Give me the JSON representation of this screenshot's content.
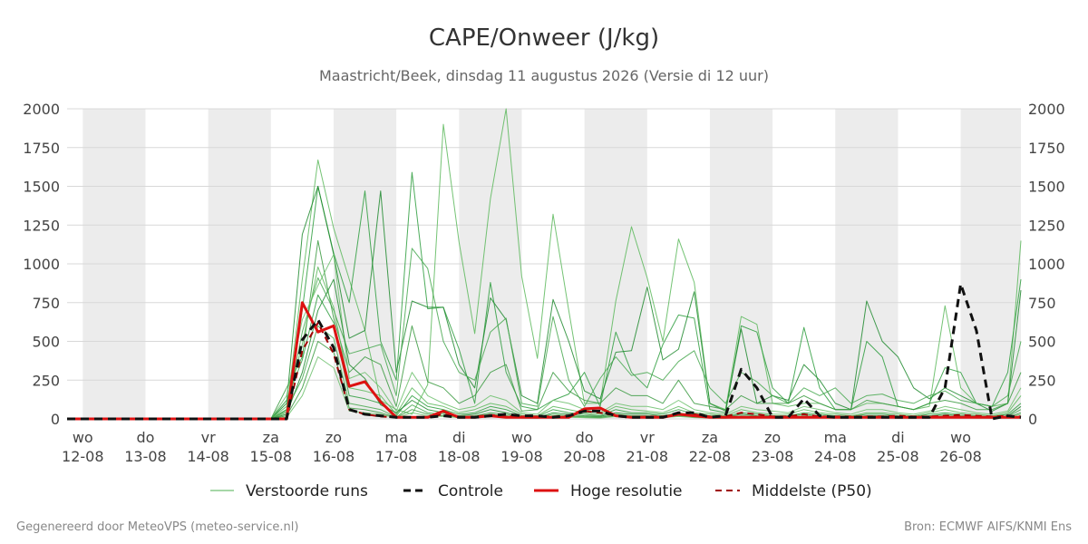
{
  "chart_data": {
    "type": "line",
    "title": "CAPE/Onweer (J/kg)",
    "subtitle": "Maastricht/Beek, dinsdag 11 augustus 2026 (Versie di 12 uur)",
    "ylim": [
      0,
      2000
    ],
    "yticks": [
      0,
      250,
      500,
      750,
      1000,
      1250,
      1500,
      1750,
      2000
    ],
    "xlim": [
      -0.25,
      14.96
    ],
    "x_ticks": [
      {
        "x": 0,
        "day": "wo",
        "date": "12-08"
      },
      {
        "x": 1,
        "day": "do",
        "date": "13-08"
      },
      {
        "x": 2,
        "day": "vr",
        "date": "14-08"
      },
      {
        "x": 3,
        "day": "za",
        "date": "15-08"
      },
      {
        "x": 4,
        "day": "zo",
        "date": "16-08"
      },
      {
        "x": 5,
        "day": "ma",
        "date": "17-08"
      },
      {
        "x": 6,
        "day": "di",
        "date": "18-08"
      },
      {
        "x": 7,
        "day": "wo",
        "date": "19-08"
      },
      {
        "x": 8,
        "day": "do",
        "date": "20-08"
      },
      {
        "x": 9,
        "day": "vr",
        "date": "21-08"
      },
      {
        "x": 10,
        "day": "za",
        "date": "22-08"
      },
      {
        "x": 11,
        "day": "zo",
        "date": "23-08"
      },
      {
        "x": 12,
        "day": "ma",
        "date": "24-08"
      },
      {
        "x": 13,
        "day": "di",
        "date": "25-08"
      },
      {
        "x": 14,
        "day": "wo",
        "date": "26-08"
      }
    ],
    "shaded_bands": [
      [
        0,
        1
      ],
      [
        2,
        3
      ],
      [
        4,
        5
      ],
      [
        6,
        7
      ],
      [
        8,
        9
      ],
      [
        10,
        11
      ],
      [
        12,
        13
      ],
      [
        14,
        14.96
      ]
    ],
    "legend": [
      "Verstoorde runs",
      "Controle",
      "Hoge resolutie",
      "Middelste (P50)"
    ],
    "series": [
      {
        "name": "Hoge resolutie",
        "color": "#dd1111",
        "x": [
          -0.25,
          0,
          0.5,
          1,
          1.5,
          2,
          2.5,
          3,
          3.25,
          3.5,
          3.75,
          4,
          4.25,
          4.5,
          4.75,
          5,
          5.25,
          5.5,
          5.75,
          6,
          6.25,
          6.5,
          6.75,
          7,
          7.25,
          7.5,
          7.75,
          8,
          8.25,
          8.5,
          8.75,
          9,
          9.25,
          9.5,
          9.75,
          10,
          10.25,
          10.5,
          10.75,
          11,
          11.25,
          11.5,
          11.75,
          12,
          12.25,
          12.5,
          12.75,
          13,
          13.25,
          13.5,
          13.75,
          14,
          14.25,
          14.5,
          14.75,
          14.96
        ],
        "y": [
          0,
          0,
          0,
          0,
          0,
          0,
          0,
          0,
          0,
          750,
          560,
          600,
          210,
          240,
          110,
          10,
          10,
          10,
          50,
          10,
          10,
          20,
          10,
          10,
          10,
          10,
          10,
          65,
          70,
          20,
          10,
          10,
          10,
          30,
          20,
          10,
          10,
          10,
          10,
          10,
          10,
          10,
          10,
          10,
          10,
          10,
          10,
          10,
          10,
          10,
          10,
          10,
          10,
          10,
          10,
          10
        ]
      },
      {
        "name": "Controle",
        "color": "#111111",
        "x": [
          -0.25,
          0,
          0.5,
          1,
          1.5,
          2,
          2.5,
          3,
          3.25,
          3.5,
          3.75,
          4,
          4.25,
          4.5,
          4.75,
          5,
          5.25,
          5.5,
          5.75,
          6,
          6.25,
          6.5,
          6.75,
          7,
          7.25,
          7.5,
          7.75,
          8,
          8.25,
          8.5,
          8.75,
          9,
          9.25,
          9.5,
          9.75,
          10,
          10.25,
          10.5,
          10.75,
          11,
          11.25,
          11.5,
          11.75,
          12,
          12.25,
          12.5,
          12.75,
          13,
          13.25,
          13.5,
          13.75,
          14,
          14.25,
          14.5,
          14.75,
          14.96
        ],
        "y": [
          0,
          0,
          0,
          0,
          0,
          0,
          0,
          0,
          0,
          510,
          640,
          460,
          60,
          30,
          20,
          10,
          10,
          10,
          20,
          10,
          10,
          20,
          30,
          20,
          20,
          10,
          20,
          50,
          50,
          20,
          10,
          10,
          10,
          40,
          40,
          10,
          20,
          320,
          200,
          10,
          10,
          130,
          20,
          10,
          10,
          10,
          10,
          10,
          10,
          10,
          200,
          870,
          570,
          0,
          20,
          10
        ]
      },
      {
        "name": "Middelste (P50)",
        "color": "#a00000",
        "x": [
          -0.25,
          0,
          0.5,
          1,
          1.5,
          2,
          2.5,
          3,
          3.25,
          3.5,
          3.75,
          4,
          4.25,
          4.5,
          4.75,
          5,
          5.25,
          5.5,
          5.75,
          6,
          6.25,
          6.5,
          6.75,
          7,
          7.25,
          7.5,
          7.75,
          8,
          8.25,
          8.5,
          8.75,
          9,
          9.25,
          9.5,
          9.75,
          10,
          10.25,
          10.5,
          10.75,
          11,
          11.25,
          11.5,
          11.75,
          12,
          12.25,
          12.5,
          12.75,
          13,
          13.25,
          13.5,
          13.75,
          14,
          14.25,
          14.5,
          14.75,
          14.96
        ],
        "y": [
          0,
          0,
          0,
          0,
          0,
          0,
          0,
          0,
          0,
          440,
          620,
          420,
          60,
          30,
          15,
          10,
          10,
          10,
          30,
          10,
          15,
          25,
          20,
          15,
          15,
          15,
          20,
          50,
          40,
          20,
          10,
          15,
          15,
          30,
          30,
          15,
          15,
          40,
          30,
          15,
          15,
          30,
          15,
          15,
          15,
          15,
          15,
          20,
          15,
          15,
          20,
          25,
          20,
          15,
          20,
          15
        ]
      },
      {
        "name": "Verstoorde runs",
        "color": "#22a030",
        "x": [
          -0.25,
          0,
          0.5,
          1,
          1.5,
          2,
          2.5,
          3,
          3.25,
          3.5,
          3.75,
          4,
          4.25,
          4.5,
          4.75,
          5,
          5.25,
          5.5,
          5.75,
          6,
          6.25,
          6.5,
          6.75,
          7,
          7.25,
          7.5,
          7.75,
          8,
          8.25,
          8.5,
          8.75,
          9,
          9.25,
          9.5,
          9.75,
          10,
          10.25,
          10.5,
          10.75,
          11,
          11.25,
          11.5,
          11.75,
          12,
          12.25,
          12.5,
          12.75,
          13,
          13.25,
          13.5,
          13.75,
          14,
          14.25,
          14.5,
          14.75,
          14.96
        ],
        "runs": [
          [
            0,
            0,
            0,
            0,
            0,
            0,
            0,
            0,
            40,
            900,
            1670,
            1230,
            900,
            570,
            120,
            60,
            30,
            220,
            1900,
            1140,
            550,
            1420,
            2000,
            920,
            390,
            1320,
            700,
            100,
            100,
            760,
            1240,
            910,
            500,
            1160,
            880,
            100,
            60,
            660,
            610,
            100,
            80,
            100,
            100,
            60,
            60,
            100,
            100,
            80,
            60,
            80,
            730,
            200,
            100,
            80,
            100,
            1150
          ],
          [
            0,
            0,
            0,
            0,
            0,
            0,
            0,
            0,
            60,
            700,
            1500,
            1070,
            750,
            1470,
            500,
            250,
            1590,
            710,
            720,
            450,
            100,
            880,
            300,
            80,
            60,
            120,
            160,
            300,
            80,
            560,
            300,
            200,
            480,
            670,
            650,
            60,
            40,
            600,
            560,
            200,
            100,
            590,
            200,
            60,
            60,
            500,
            400,
            80,
            60,
            100,
            330,
            300,
            100,
            80,
            300,
            900
          ],
          [
            0,
            0,
            0,
            0,
            0,
            0,
            0,
            0,
            100,
            1190,
            1500,
            1060,
            520,
            570,
            1470,
            300,
            760,
            720,
            720,
            350,
            200,
            780,
            640,
            150,
            100,
            770,
            500,
            180,
            130,
            430,
            440,
            850,
            380,
            450,
            820,
            100,
            50,
            580,
            100,
            150,
            120,
            350,
            250,
            100,
            60,
            760,
            500,
            400,
            200,
            130,
            200,
            150,
            100,
            50,
            100,
            830
          ],
          [
            0,
            0,
            0,
            0,
            0,
            0,
            0,
            0,
            50,
            560,
            910,
            700,
            420,
            450,
            480,
            150,
            1100,
            970,
            500,
            300,
            250,
            560,
            650,
            100,
            80,
            660,
            250,
            80,
            260,
            400,
            280,
            300,
            250,
            370,
            440,
            200,
            100,
            300,
            240,
            150,
            100,
            200,
            150,
            200,
            100,
            150,
            160,
            120,
            100,
            150,
            180,
            120,
            100,
            80,
            150,
            500
          ],
          [
            0,
            0,
            0,
            0,
            0,
            0,
            0,
            0,
            200,
            400,
            1150,
            650,
            300,
            400,
            350,
            80,
            600,
            240,
            200,
            100,
            150,
            300,
            350,
            50,
            60,
            300,
            180,
            120,
            100,
            200,
            150,
            150,
            100,
            250,
            100,
            80,
            60,
            150,
            100,
            100,
            100,
            150,
            100,
            60,
            60,
            120,
            100,
            80,
            60,
            100,
            120,
            100,
            60,
            60,
            100,
            300
          ],
          [
            0,
            0,
            0,
            0,
            0,
            0,
            0,
            0,
            150,
            640,
            860,
            1060,
            260,
            300,
            200,
            50,
            300,
            150,
            100,
            60,
            80,
            150,
            120,
            40,
            30,
            120,
            100,
            60,
            40,
            100,
            80,
            80,
            60,
            120,
            60,
            40,
            30,
            80,
            60,
            50,
            40,
            80,
            60,
            40,
            30,
            60,
            60,
            40,
            30,
            50,
            80,
            60,
            40,
            30,
            50,
            200
          ],
          [
            0,
            0,
            0,
            0,
            0,
            0,
            0,
            0,
            80,
            480,
            980,
            720,
            200,
            180,
            150,
            30,
            200,
            100,
            80,
            40,
            60,
            100,
            80,
            30,
            20,
            80,
            60,
            40,
            30,
            80,
            60,
            50,
            40,
            80,
            40,
            30,
            20,
            60,
            40,
            30,
            30,
            60,
            40,
            30,
            20,
            40,
            40,
            30,
            20,
            40,
            60,
            40,
            30,
            20,
            40,
            150
          ],
          [
            0,
            0,
            0,
            0,
            0,
            0,
            0,
            0,
            120,
            380,
            800,
            620,
            150,
            130,
            100,
            20,
            150,
            80,
            60,
            30,
            40,
            80,
            60,
            20,
            15,
            60,
            40,
            30,
            20,
            60,
            40,
            40,
            30,
            60,
            30,
            20,
            15,
            40,
            30,
            20,
            20,
            40,
            30,
            20,
            15,
            30,
            30,
            20,
            15,
            30,
            40,
            30,
            20,
            15,
            30,
            100
          ],
          [
            0,
            0,
            0,
            0,
            0,
            0,
            0,
            0,
            30,
            300,
            700,
            900,
            350,
            260,
            90,
            40,
            120,
            60,
            40,
            20,
            30,
            60,
            40,
            15,
            10,
            40,
            30,
            20,
            15,
            40,
            30,
            30,
            20,
            40,
            20,
            15,
            10,
            30,
            20,
            15,
            15,
            30,
            20,
            15,
            10,
            20,
            20,
            15,
            10,
            20,
            30,
            20,
            15,
            10,
            20,
            80
          ],
          [
            0,
            0,
            0,
            0,
            0,
            0,
            0,
            0,
            60,
            260,
            600,
            520,
            100,
            80,
            60,
            10,
            90,
            40,
            30,
            15,
            20,
            40,
            30,
            10,
            8,
            30,
            20,
            15,
            10,
            30,
            20,
            20,
            15,
            30,
            15,
            10,
            8,
            20,
            15,
            10,
            10,
            20,
            15,
            10,
            8,
            15,
            15,
            10,
            8,
            15,
            20,
            15,
            10,
            8,
            15,
            60
          ],
          [
            0,
            0,
            0,
            0,
            0,
            0,
            0,
            0,
            20,
            200,
            500,
            430,
            70,
            60,
            40,
            8,
            60,
            30,
            20,
            10,
            15,
            30,
            20,
            8,
            5,
            20,
            15,
            10,
            8,
            20,
            15,
            15,
            10,
            20,
            10,
            8,
            5,
            15,
            10,
            8,
            8,
            15,
            10,
            8,
            5,
            10,
            10,
            8,
            5,
            10,
            15,
            10,
            8,
            5,
            10,
            40
          ],
          [
            0,
            0,
            0,
            0,
            0,
            0,
            0,
            0,
            10,
            150,
            400,
            330,
            50,
            40,
            30,
            5,
            40,
            20,
            15,
            8,
            10,
            20,
            15,
            5,
            4,
            15,
            10,
            8,
            5,
            15,
            10,
            10,
            8,
            15,
            8,
            5,
            4,
            10,
            8,
            5,
            5,
            10,
            8,
            5,
            4,
            8,
            8,
            5,
            4,
            8,
            10,
            8,
            5,
            4,
            8,
            30
          ]
        ]
      }
    ],
    "footer_left": "Gegenereerd door MeteoVPS (meteo-service.nl)",
    "footer_right": "Bron: ECMWF AIFS/KNMI Ens"
  }
}
